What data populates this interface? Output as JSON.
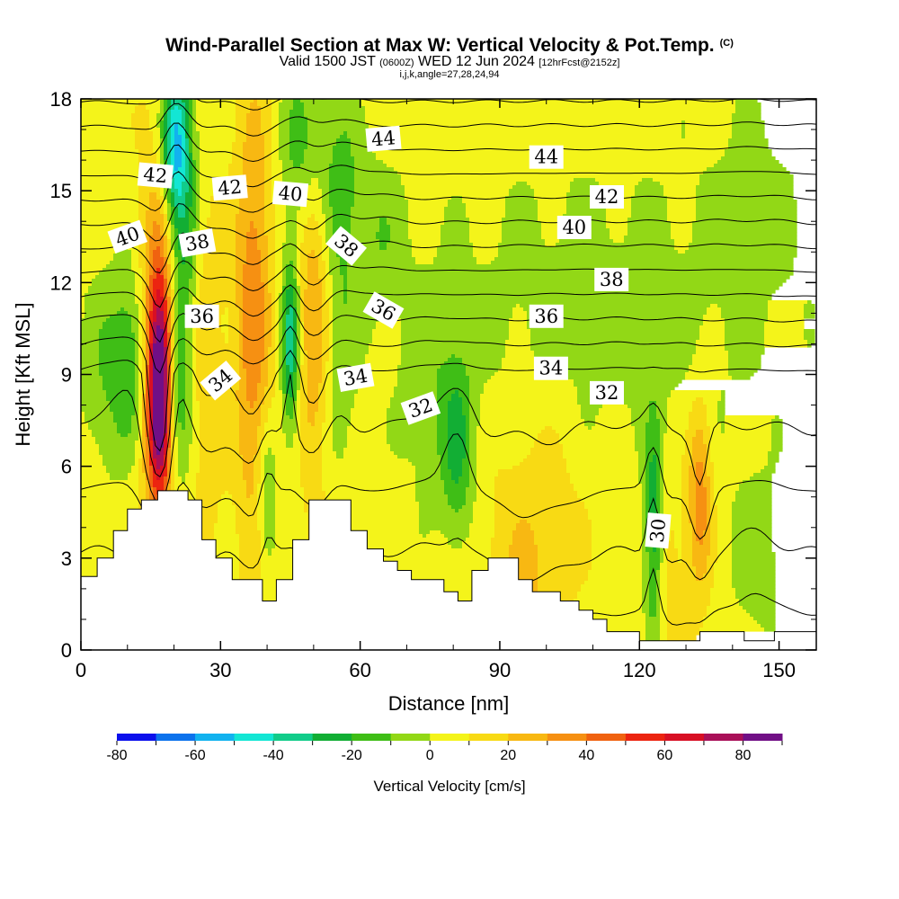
{
  "header": {
    "title": "Wind-Parallel Section at Max W: Vertical Velocity & Pot.Temp.",
    "copyright": "(C)",
    "subtitle_pre": "Valid 1500 JST",
    "subtitle_small1": "(0600Z)",
    "subtitle_mid": "WED 12 Jun 2024",
    "subtitle_small2": "[12hrFcst@2152z]",
    "subtitle2": "i,j,k,angle=27,28,24,94"
  },
  "chart_data": {
    "type": "heatmap",
    "xlabel": "Distance [nm]",
    "ylabel": "Height [Kft MSL]",
    "xlim": [
      0,
      158
    ],
    "ylim": [
      0,
      18
    ],
    "x_ticks": [
      0,
      30,
      60,
      90,
      120,
      150
    ],
    "y_ticks": [
      0,
      3,
      6,
      9,
      12,
      15,
      18
    ],
    "colorbar": {
      "label": "Vertical Velocity [cm/s]",
      "ticks": [
        -80,
        -60,
        -40,
        -20,
        0,
        20,
        40,
        60,
        80
      ],
      "range": [
        -80,
        90
      ],
      "step": 10,
      "colors": [
        "#0b10ec",
        "#0c72ec",
        "#12b2ef",
        "#13e6d4",
        "#12cc8a",
        "#12ae34",
        "#3fbe16",
        "#92d816",
        "#f4f41a",
        "#f8da14",
        "#f8b812",
        "#f69012",
        "#f06210",
        "#ec2410",
        "#d80f24",
        "#a90f58",
        "#710f86"
      ]
    },
    "terrain_kft": [
      [
        0,
        2.4
      ],
      [
        3.5,
        2.4
      ],
      [
        3.5,
        3.0
      ],
      [
        7,
        3.0
      ],
      [
        7,
        3.9
      ],
      [
        10,
        3.9
      ],
      [
        10,
        4.6
      ],
      [
        13,
        4.6
      ],
      [
        13,
        4.9
      ],
      [
        16.5,
        4.9
      ],
      [
        16.5,
        5.2
      ],
      [
        23,
        5.2
      ],
      [
        23,
        4.9
      ],
      [
        26,
        4.9
      ],
      [
        26,
        3.6
      ],
      [
        29,
        3.6
      ],
      [
        29,
        3.0
      ],
      [
        32.5,
        3.0
      ],
      [
        32.5,
        2.3
      ],
      [
        39,
        2.3
      ],
      [
        39,
        1.6
      ],
      [
        42,
        1.6
      ],
      [
        42,
        2.3
      ],
      [
        45.5,
        2.3
      ],
      [
        45.5,
        3.6
      ],
      [
        49,
        3.6
      ],
      [
        49,
        4.9
      ],
      [
        58,
        4.9
      ],
      [
        58,
        3.9
      ],
      [
        61.5,
        3.9
      ],
      [
        61.5,
        3.3
      ],
      [
        65,
        3.3
      ],
      [
        65,
        2.9
      ],
      [
        68,
        2.9
      ],
      [
        68,
        2.6
      ],
      [
        71,
        2.6
      ],
      [
        71,
        2.3
      ],
      [
        78,
        2.3
      ],
      [
        78,
        1.9
      ],
      [
        81,
        1.9
      ],
      [
        81,
        1.6
      ],
      [
        84,
        1.6
      ],
      [
        84,
        2.6
      ],
      [
        87.5,
        2.6
      ],
      [
        87.5,
        3.0
      ],
      [
        94,
        3.0
      ],
      [
        94,
        2.3
      ],
      [
        97,
        2.3
      ],
      [
        97,
        1.9
      ],
      [
        103,
        1.9
      ],
      [
        103,
        1.6
      ],
      [
        107,
        1.6
      ],
      [
        107,
        1.3
      ],
      [
        110,
        1.3
      ],
      [
        110,
        1.0
      ],
      [
        113,
        1.0
      ],
      [
        113,
        0.6
      ],
      [
        120,
        0.6
      ],
      [
        120,
        0.3
      ],
      [
        133,
        0.3
      ],
      [
        133,
        0.6
      ],
      [
        142.5,
        0.6
      ],
      [
        142.5,
        0.3
      ],
      [
        149,
        0.3
      ],
      [
        149,
        0.6
      ],
      [
        158,
        0.6
      ]
    ],
    "contour_labels": [
      {
        "value": "42",
        "x": 16,
        "y": 15.5,
        "angle": 5
      },
      {
        "value": "42",
        "x": 32,
        "y": 15.1,
        "angle": -5
      },
      {
        "value": "40",
        "x": 45,
        "y": 14.9,
        "angle": 5
      },
      {
        "value": "44",
        "x": 65,
        "y": 16.7,
        "angle": -5
      },
      {
        "value": "44",
        "x": 100,
        "y": 16.1,
        "angle": 0
      },
      {
        "value": "42",
        "x": 113,
        "y": 14.8,
        "angle": 0
      },
      {
        "value": "40",
        "x": 10,
        "y": 13.5,
        "angle": -20
      },
      {
        "value": "38",
        "x": 25,
        "y": 13.3,
        "angle": -10
      },
      {
        "value": "38",
        "x": 57,
        "y": 13.2,
        "angle": 40
      },
      {
        "value": "40",
        "x": 106,
        "y": 13.8,
        "angle": 0
      },
      {
        "value": "38",
        "x": 114,
        "y": 12.1,
        "angle": 0
      },
      {
        "value": "36",
        "x": 26,
        "y": 10.9,
        "angle": 0
      },
      {
        "value": "36",
        "x": 65,
        "y": 11.1,
        "angle": 30
      },
      {
        "value": "36",
        "x": 100,
        "y": 10.9,
        "angle": 0
      },
      {
        "value": "34",
        "x": 30,
        "y": 8.8,
        "angle": -40
      },
      {
        "value": "34",
        "x": 59,
        "y": 8.9,
        "angle": -10
      },
      {
        "value": "34",
        "x": 101,
        "y": 9.2,
        "angle": 0
      },
      {
        "value": "32",
        "x": 73,
        "y": 7.9,
        "angle": -20
      },
      {
        "value": "32",
        "x": 113,
        "y": 8.4,
        "angle": 0
      },
      {
        "value": "30",
        "x": 124,
        "y": 3.9,
        "angle": -85
      }
    ],
    "theta_levels": [
      30,
      31,
      32,
      33,
      34,
      35,
      36,
      37,
      38,
      39,
      40,
      41,
      42,
      43,
      44,
      45
    ]
  }
}
